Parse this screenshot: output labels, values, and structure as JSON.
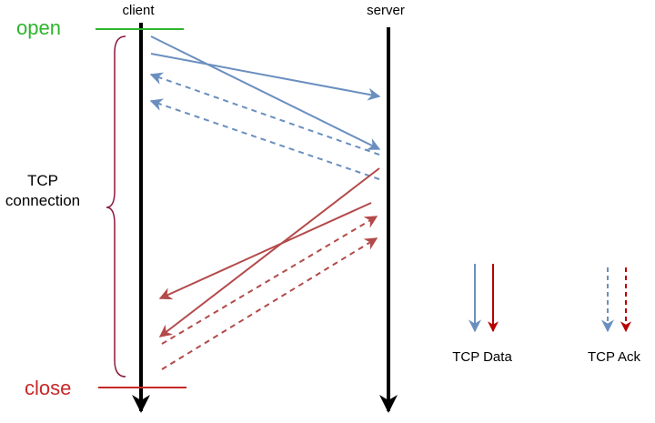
{
  "labels": {
    "client": "client",
    "server": "server",
    "open": "open",
    "close": "close",
    "tcp_line1": "TCP",
    "tcp_line2": "connection"
  },
  "legend": {
    "data_label": "TCP Data",
    "ack_label": "TCP Ack"
  },
  "colors": {
    "open": "#2db52d",
    "close": "#c62828",
    "blue": "#6a8fbf",
    "red": "#b34a4a",
    "legend_red": "#b80000",
    "brace": "#8b1a3a",
    "timeline": "#000000"
  }
}
